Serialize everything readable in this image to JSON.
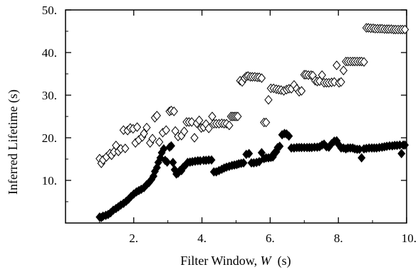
{
  "chart_data": {
    "type": "scatter",
    "title": "",
    "xlabel": "Filter Window, ",
    "xlabel_var": "W",
    "xlabel_unit": "  (s)",
    "ylabel": "Inferred Lifetime  (s)",
    "xlim": [
      0,
      10
    ],
    "ylim": [
      0,
      50
    ],
    "x_ticks": [
      {
        "value": 2,
        "label": "2."
      },
      {
        "value": 4,
        "label": "4."
      },
      {
        "value": 6,
        "label": "6."
      },
      {
        "value": 8,
        "label": "8."
      },
      {
        "value": 10,
        "label": "10."
      }
    ],
    "y_ticks": [
      {
        "value": 10,
        "label": "10."
      },
      {
        "value": 20,
        "label": "20."
      },
      {
        "value": 30,
        "label": "30."
      },
      {
        "value": 40,
        "label": "40."
      },
      {
        "value": 50,
        "label": "50."
      }
    ],
    "grid": false,
    "legend": "none",
    "series": [
      {
        "marker": "open-diamond",
        "color": "#000000",
        "points": [
          [
            1.0,
            15.1
          ],
          [
            1.05,
            14.0
          ],
          [
            1.1,
            14.8
          ],
          [
            1.2,
            15.5
          ],
          [
            1.3,
            16.3
          ],
          [
            1.35,
            15.9
          ],
          [
            1.42,
            16.7
          ],
          [
            1.48,
            18.2
          ],
          [
            1.55,
            16.8
          ],
          [
            1.62,
            17.4
          ],
          [
            1.7,
            21.8
          ],
          [
            1.75,
            17.5
          ],
          [
            1.82,
            21.7
          ],
          [
            1.9,
            22.3
          ],
          [
            1.98,
            22.1
          ],
          [
            2.05,
            18.8
          ],
          [
            2.1,
            22.5
          ],
          [
            2.15,
            19.5
          ],
          [
            2.25,
            20.2
          ],
          [
            2.3,
            21.0
          ],
          [
            2.38,
            22.4
          ],
          [
            2.48,
            18.8
          ],
          [
            2.55,
            19.8
          ],
          [
            2.62,
            24.7
          ],
          [
            2.68,
            25.2
          ],
          [
            2.75,
            19.0
          ],
          [
            2.85,
            21.2
          ],
          [
            2.95,
            21.8
          ],
          [
            3.05,
            26.2
          ],
          [
            3.1,
            26.4
          ],
          [
            3.18,
            26.2
          ],
          [
            3.22,
            21.6
          ],
          [
            3.3,
            20.3
          ],
          [
            3.4,
            20.5
          ],
          [
            3.48,
            21.5
          ],
          [
            3.55,
            23.7
          ],
          [
            3.62,
            23.7
          ],
          [
            3.7,
            23.7
          ],
          [
            3.78,
            20.0
          ],
          [
            3.85,
            23.4
          ],
          [
            3.92,
            24.1
          ],
          [
            3.98,
            22.3
          ],
          [
            4.05,
            22.5
          ],
          [
            4.12,
            23.2
          ],
          [
            4.2,
            22.2
          ],
          [
            4.3,
            25.0
          ],
          [
            4.35,
            23.3
          ],
          [
            4.42,
            23.3
          ],
          [
            4.5,
            23.3
          ],
          [
            4.58,
            23.4
          ],
          [
            4.65,
            23.3
          ],
          [
            4.72,
            23.3
          ],
          [
            4.8,
            22.9
          ],
          [
            4.85,
            25.0
          ],
          [
            4.9,
            25.0
          ],
          [
            4.95,
            25.0
          ],
          [
            5.0,
            25.0
          ],
          [
            5.05,
            25.0
          ],
          [
            5.12,
            33.4
          ],
          [
            5.18,
            33.1
          ],
          [
            5.25,
            34.0
          ],
          [
            5.3,
            34.4
          ],
          [
            5.35,
            34.5
          ],
          [
            5.42,
            34.3
          ],
          [
            5.48,
            34.3
          ],
          [
            5.55,
            34.3
          ],
          [
            5.62,
            34.2
          ],
          [
            5.68,
            34.2
          ],
          [
            5.75,
            34.0
          ],
          [
            5.82,
            23.6
          ],
          [
            5.88,
            23.6
          ],
          [
            5.95,
            28.9
          ],
          [
            6.02,
            31.6
          ],
          [
            6.1,
            31.6
          ],
          [
            6.18,
            31.4
          ],
          [
            6.25,
            31.3
          ],
          [
            6.32,
            31.2
          ],
          [
            6.4,
            31.0
          ],
          [
            6.48,
            31.3
          ],
          [
            6.55,
            31.5
          ],
          [
            6.62,
            31.5
          ],
          [
            6.7,
            32.4
          ],
          [
            6.78,
            31.5
          ],
          [
            6.85,
            30.8
          ],
          [
            6.92,
            31.0
          ],
          [
            7.0,
            34.8
          ],
          [
            7.05,
            34.8
          ],
          [
            7.12,
            34.7
          ],
          [
            7.2,
            34.7
          ],
          [
            7.25,
            34.6
          ],
          [
            7.32,
            33.4
          ],
          [
            7.38,
            33.2
          ],
          [
            7.45,
            33.3
          ],
          [
            7.52,
            34.7
          ],
          [
            7.58,
            32.9
          ],
          [
            7.65,
            32.9
          ],
          [
            7.72,
            32.9
          ],
          [
            7.8,
            33.0
          ],
          [
            7.88,
            33.1
          ],
          [
            7.95,
            37.0
          ],
          [
            8.02,
            32.9
          ],
          [
            8.08,
            33.1
          ],
          [
            8.15,
            35.8
          ],
          [
            8.22,
            37.9
          ],
          [
            8.28,
            37.9
          ],
          [
            8.35,
            37.9
          ],
          [
            8.42,
            37.9
          ],
          [
            8.48,
            37.9
          ],
          [
            8.55,
            37.9
          ],
          [
            8.62,
            37.9
          ],
          [
            8.68,
            37.9
          ],
          [
            8.75,
            37.8
          ],
          [
            8.82,
            45.8
          ],
          [
            8.88,
            45.8
          ],
          [
            8.95,
            45.7
          ],
          [
            9.02,
            45.7
          ],
          [
            9.08,
            45.6
          ],
          [
            9.15,
            45.6
          ],
          [
            9.22,
            45.6
          ],
          [
            9.28,
            45.6
          ],
          [
            9.35,
            45.5
          ],
          [
            9.42,
            45.5
          ],
          [
            9.48,
            45.5
          ],
          [
            9.55,
            45.5
          ],
          [
            9.62,
            45.4
          ],
          [
            9.68,
            45.4
          ],
          [
            9.75,
            45.4
          ],
          [
            9.82,
            45.4
          ],
          [
            9.88,
            45.4
          ],
          [
            9.95,
            45.4
          ]
        ]
      },
      {
        "marker": "filled-diamond",
        "color": "#000000",
        "points": [
          [
            1.0,
            1.4
          ],
          [
            1.05,
            1.3
          ],
          [
            1.1,
            1.6
          ],
          [
            1.18,
            1.8
          ],
          [
            1.25,
            2.0
          ],
          [
            1.32,
            2.4
          ],
          [
            1.4,
            3.0
          ],
          [
            1.48,
            3.4
          ],
          [
            1.55,
            3.8
          ],
          [
            1.62,
            4.2
          ],
          [
            1.7,
            4.6
          ],
          [
            1.78,
            5.1
          ],
          [
            1.85,
            5.6
          ],
          [
            1.92,
            6.2
          ],
          [
            2.0,
            6.8
          ],
          [
            2.08,
            7.3
          ],
          [
            2.15,
            7.6
          ],
          [
            2.22,
            7.9
          ],
          [
            2.3,
            8.3
          ],
          [
            2.38,
            9.0
          ],
          [
            2.45,
            9.5
          ],
          [
            2.52,
            10.2
          ],
          [
            2.58,
            11.0
          ],
          [
            2.62,
            12.1
          ],
          [
            2.68,
            13.0
          ],
          [
            2.72,
            14.2
          ],
          [
            2.78,
            15.3
          ],
          [
            2.82,
            16.5
          ],
          [
            2.88,
            17.4
          ],
          [
            2.92,
            14.7
          ],
          [
            2.98,
            14.3
          ],
          [
            3.05,
            17.8
          ],
          [
            3.1,
            18.1
          ],
          [
            3.15,
            14.2
          ],
          [
            3.2,
            12.5
          ],
          [
            3.25,
            11.5
          ],
          [
            3.3,
            11.7
          ],
          [
            3.35,
            12.3
          ],
          [
            3.4,
            12.3
          ],
          [
            3.45,
            13.1
          ],
          [
            3.52,
            13.6
          ],
          [
            3.58,
            14.2
          ],
          [
            3.65,
            14.3
          ],
          [
            3.72,
            14.4
          ],
          [
            3.8,
            14.5
          ],
          [
            3.88,
            14.6
          ],
          [
            3.95,
            14.6
          ],
          [
            4.05,
            14.7
          ],
          [
            4.12,
            14.7
          ],
          [
            4.2,
            14.8
          ],
          [
            4.28,
            14.8
          ],
          [
            4.35,
            12.0
          ],
          [
            4.42,
            12.0
          ],
          [
            4.5,
            12.3
          ],
          [
            4.58,
            12.6
          ],
          [
            4.65,
            12.9
          ],
          [
            4.72,
            13.1
          ],
          [
            4.8,
            13.3
          ],
          [
            4.88,
            13.5
          ],
          [
            4.95,
            13.6
          ],
          [
            5.02,
            13.7
          ],
          [
            5.08,
            13.9
          ],
          [
            5.15,
            14.0
          ],
          [
            5.22,
            14.1
          ],
          [
            5.3,
            16.1
          ],
          [
            5.38,
            16.3
          ],
          [
            5.45,
            14.1
          ],
          [
            5.52,
            14.1
          ],
          [
            5.6,
            14.2
          ],
          [
            5.68,
            14.4
          ],
          [
            5.75,
            16.5
          ],
          [
            5.82,
            15.1
          ],
          [
            5.88,
            15.3
          ],
          [
            5.95,
            15.3
          ],
          [
            6.02,
            15.4
          ],
          [
            6.08,
            15.5
          ],
          [
            6.12,
            16.4
          ],
          [
            6.18,
            16.7
          ],
          [
            6.22,
            17.7
          ],
          [
            6.28,
            18.0
          ],
          [
            6.35,
            20.7
          ],
          [
            6.42,
            21.0
          ],
          [
            6.48,
            20.9
          ],
          [
            6.55,
            20.4
          ],
          [
            6.62,
            17.6
          ],
          [
            6.7,
            17.6
          ],
          [
            6.78,
            17.7
          ],
          [
            6.85,
            17.7
          ],
          [
            6.92,
            17.7
          ],
          [
            7.0,
            17.7
          ],
          [
            7.08,
            17.7
          ],
          [
            7.15,
            17.7
          ],
          [
            7.22,
            17.7
          ],
          [
            7.3,
            17.8
          ],
          [
            7.38,
            17.8
          ],
          [
            7.45,
            17.9
          ],
          [
            7.52,
            18.3
          ],
          [
            7.58,
            18.5
          ],
          [
            7.65,
            17.9
          ],
          [
            7.72,
            17.8
          ],
          [
            7.8,
            18.6
          ],
          [
            7.88,
            19.2
          ],
          [
            7.95,
            19.3
          ],
          [
            8.02,
            18.3
          ],
          [
            8.08,
            17.6
          ],
          [
            8.15,
            17.6
          ],
          [
            8.22,
            17.4
          ],
          [
            8.28,
            17.6
          ],
          [
            8.35,
            17.6
          ],
          [
            8.42,
            17.6
          ],
          [
            8.48,
            17.4
          ],
          [
            8.55,
            17.3
          ],
          [
            8.62,
            17.3
          ],
          [
            8.68,
            15.3
          ],
          [
            8.75,
            17.4
          ],
          [
            8.82,
            17.5
          ],
          [
            8.9,
            17.6
          ],
          [
            8.98,
            17.6
          ],
          [
            9.05,
            17.6
          ],
          [
            9.12,
            17.6
          ],
          [
            9.2,
            17.7
          ],
          [
            9.28,
            17.8
          ],
          [
            9.35,
            17.9
          ],
          [
            9.42,
            18.0
          ],
          [
            9.5,
            18.1
          ],
          [
            9.58,
            18.1
          ],
          [
            9.65,
            18.2
          ],
          [
            9.72,
            18.2
          ],
          [
            9.8,
            18.3
          ],
          [
            9.85,
            16.3
          ],
          [
            9.9,
            18.3
          ],
          [
            9.95,
            18.3
          ]
        ]
      }
    ]
  }
}
